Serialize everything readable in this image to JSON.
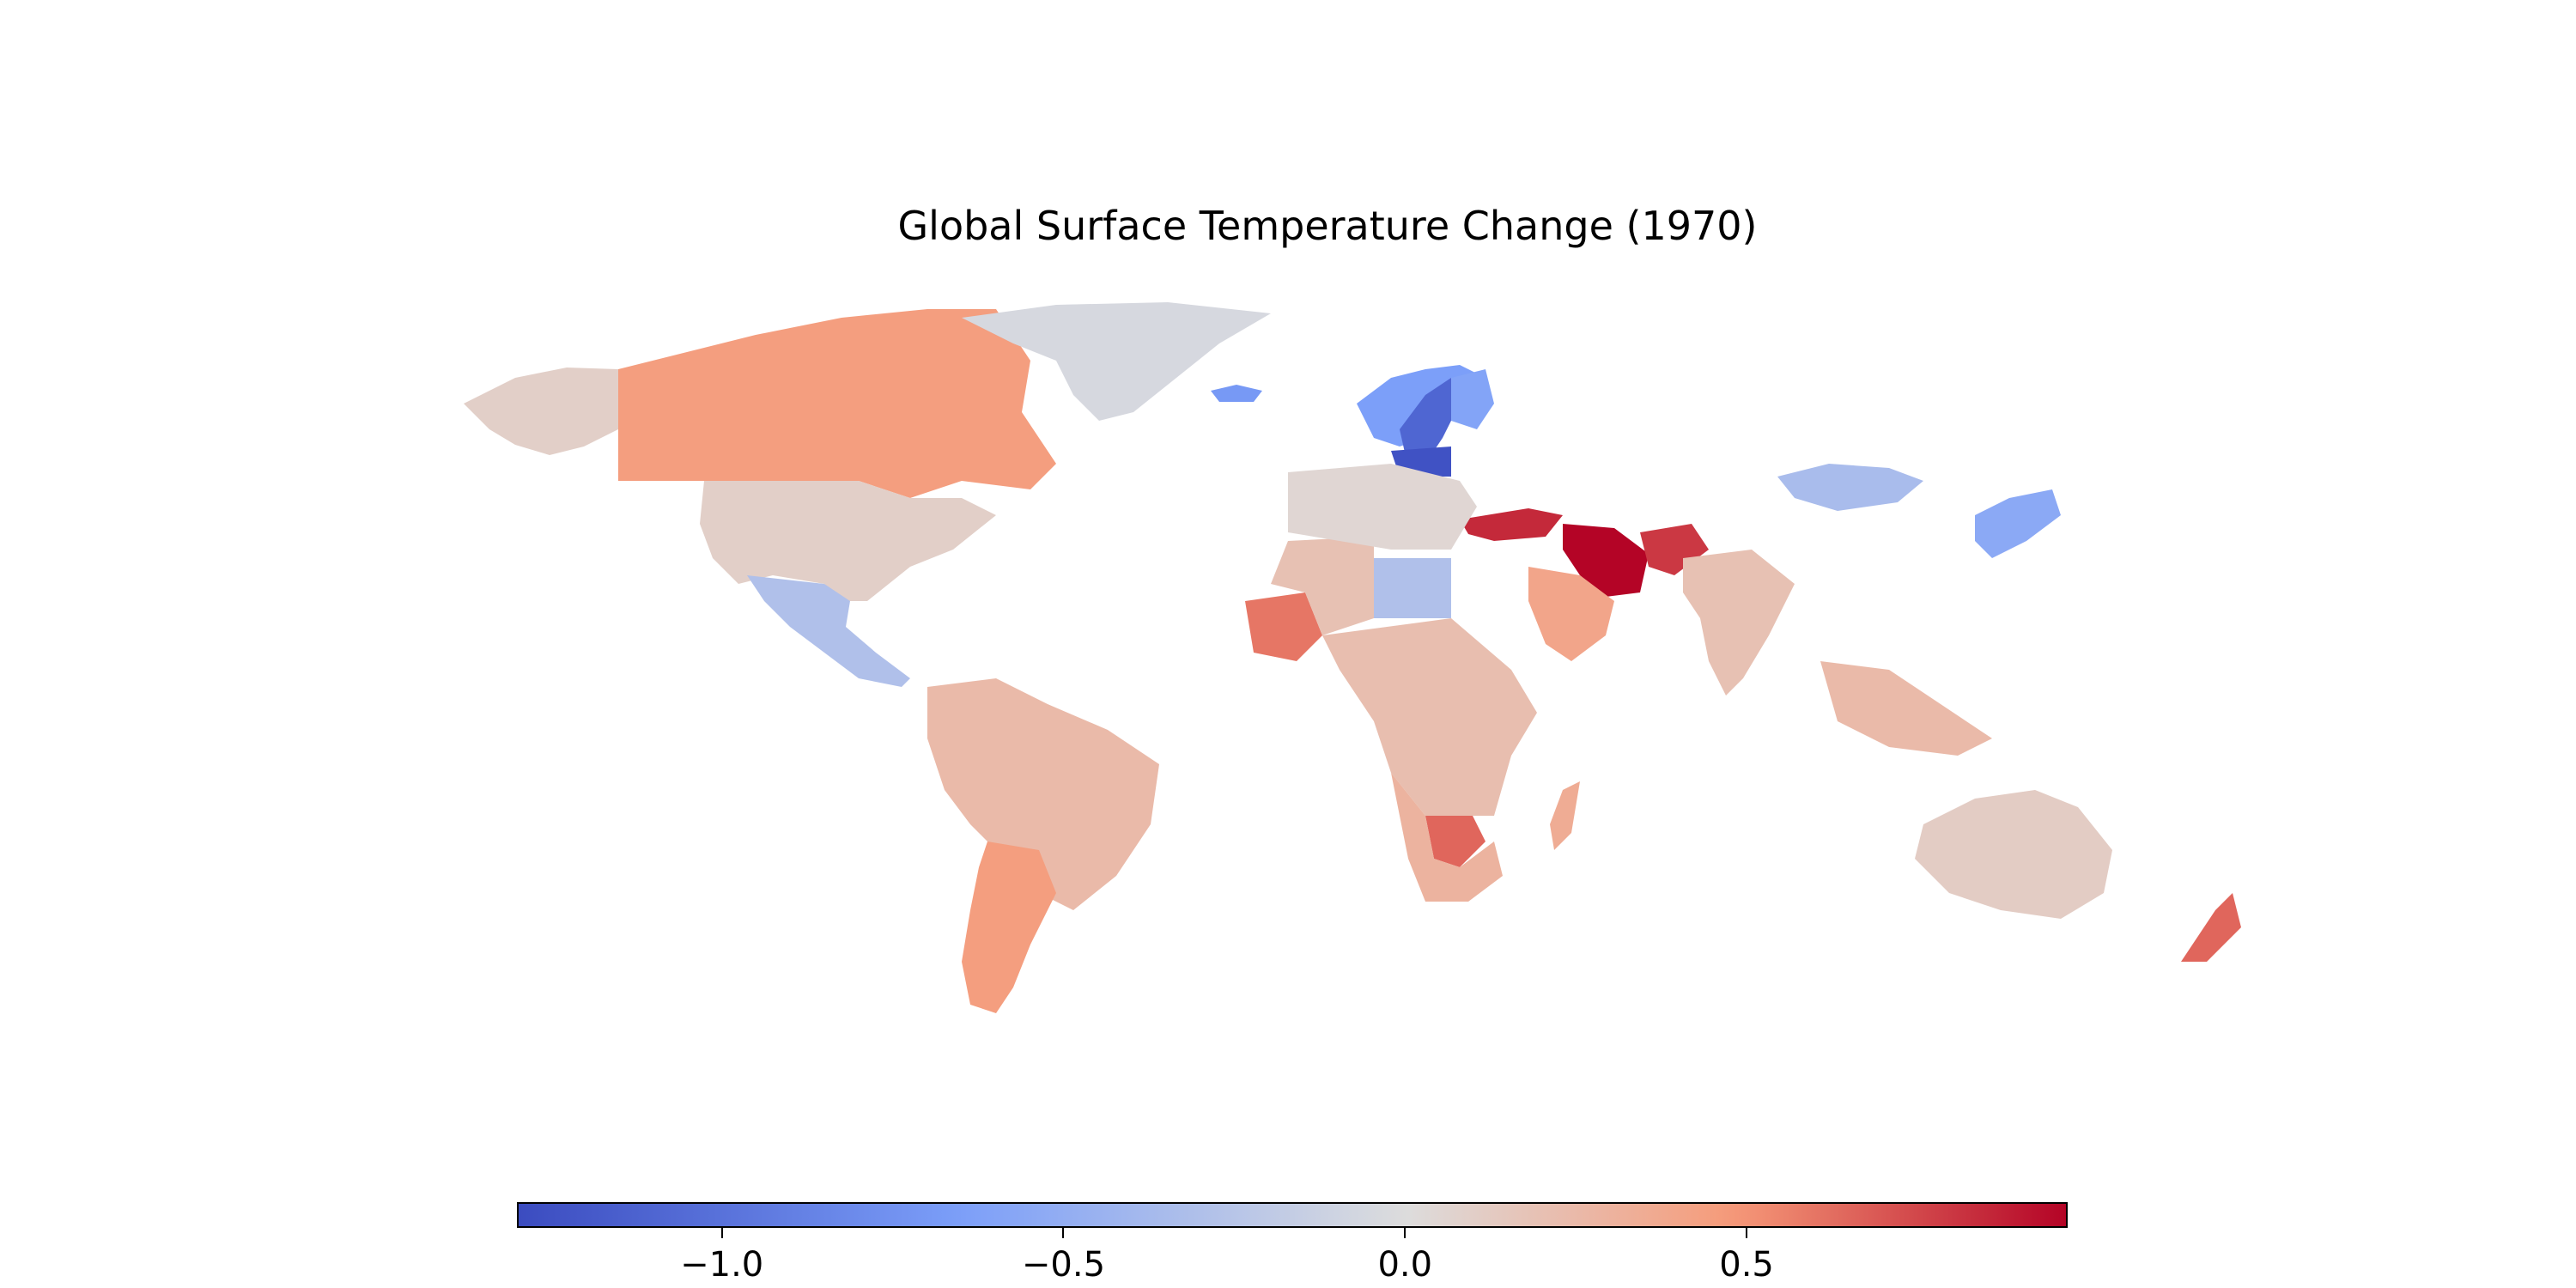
{
  "title": "Global Surface Temperature Change (1970)",
  "colorbar": {
    "min": -1.3,
    "max": 0.97,
    "ticks": [
      {
        "value": -1.0,
        "label": "−1.0"
      },
      {
        "value": -0.5,
        "label": "−0.5"
      },
      {
        "value": 0.0,
        "label": "0.0"
      },
      {
        "value": 0.5,
        "label": "0.5"
      }
    ],
    "colormap": "coolwarm"
  },
  "chart_data": {
    "type": "choropleth",
    "title": "Global Surface Temperature Change (1970)",
    "value_range": [
      -1.3,
      0.97
    ],
    "regions": [
      {
        "name": "Canada",
        "value": 0.45
      },
      {
        "name": "USA",
        "value": 0.1
      },
      {
        "name": "Alaska",
        "value": 0.1
      },
      {
        "name": "Mexico",
        "value": -0.3
      },
      {
        "name": "Greenland",
        "value": -0.05
      },
      {
        "name": "Iceland",
        "value": -0.7
      },
      {
        "name": "Norway",
        "value": -0.65
      },
      {
        "name": "Sweden",
        "value": -1.1
      },
      {
        "name": "Finland",
        "value": -0.6
      },
      {
        "name": "Poland",
        "value": -1.25
      },
      {
        "name": "Russia",
        "value": -0.35
      },
      {
        "name": "Japan",
        "value": -0.55
      },
      {
        "name": "Turkey",
        "value": 0.85
      },
      {
        "name": "Iran",
        "value": 0.97
      },
      {
        "name": "Afghanistan",
        "value": 0.8
      },
      {
        "name": "Saudi Arabia",
        "value": 0.4
      },
      {
        "name": "India",
        "value": 0.2
      },
      {
        "name": "Mauritania",
        "value": 0.6
      },
      {
        "name": "Libya",
        "value": -0.3
      },
      {
        "name": "Botswana",
        "value": 0.65
      },
      {
        "name": "Australia",
        "value": 0.12
      },
      {
        "name": "New Zealand",
        "value": 0.65
      },
      {
        "name": "Brazil",
        "value": 0.25
      },
      {
        "name": "Argentina",
        "value": 0.45
      }
    ]
  }
}
